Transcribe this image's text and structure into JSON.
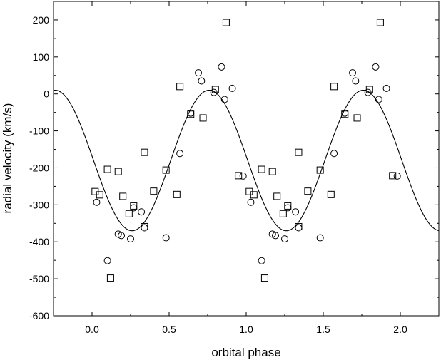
{
  "chart_data": {
    "type": "scatter",
    "title": "",
    "xlabel": "orbital phase",
    "ylabel": "radial velocity (km/s)",
    "xlim": [
      -0.25,
      2.25
    ],
    "ylim": [
      -600,
      250
    ],
    "x_ticks": [
      0.0,
      0.5,
      1.0,
      1.5,
      2.0
    ],
    "x_tick_labels": [
      "0.0",
      "0.5",
      "1.0",
      "1.5",
      "2.0"
    ],
    "y_ticks": [
      -600,
      -500,
      -400,
      -300,
      -200,
      -100,
      0,
      100,
      200
    ],
    "y_tick_labels": [
      "-600",
      "-500",
      "-400",
      "-300",
      "-200",
      "-100",
      "0",
      "100",
      "200"
    ],
    "grid": false,
    "legend": "none",
    "colors": {
      "axis": "#000000",
      "marker": "#000000",
      "background": "#ffffff"
    },
    "series": [
      {
        "marker": "circle",
        "points": [
          [
            0.03,
            -293
          ],
          [
            0.1,
            -451
          ],
          [
            0.17,
            -379
          ],
          [
            0.19,
            -383
          ],
          [
            0.25,
            -392
          ],
          [
            0.27,
            -308
          ],
          [
            0.32,
            -319
          ],
          [
            0.34,
            -362
          ],
          [
            0.48,
            -389
          ],
          [
            0.57,
            -161
          ],
          [
            0.64,
            -52
          ],
          [
            0.69,
            57
          ],
          [
            0.71,
            35
          ],
          [
            0.79,
            4
          ],
          [
            0.84,
            73
          ],
          [
            0.86,
            -15
          ],
          [
            0.91,
            15
          ],
          [
            0.98,
            -222
          ],
          [
            1.03,
            -293
          ],
          [
            1.1,
            -451
          ],
          [
            1.17,
            -379
          ],
          [
            1.19,
            -383
          ],
          [
            1.25,
            -392
          ],
          [
            1.27,
            -308
          ],
          [
            1.32,
            -319
          ],
          [
            1.34,
            -362
          ],
          [
            1.48,
            -389
          ],
          [
            1.57,
            -161
          ],
          [
            1.64,
            -52
          ],
          [
            1.69,
            57
          ],
          [
            1.71,
            35
          ],
          [
            1.79,
            4
          ],
          [
            1.84,
            73
          ],
          [
            1.86,
            -15
          ],
          [
            1.91,
            15
          ],
          [
            1.98,
            -222
          ]
        ]
      },
      {
        "marker": "square",
        "points": [
          [
            0.02,
            -264
          ],
          [
            0.05,
            -273
          ],
          [
            0.1,
            -204
          ],
          [
            0.12,
            -498
          ],
          [
            0.17,
            -210
          ],
          [
            0.2,
            -277
          ],
          [
            0.24,
            -324
          ],
          [
            0.27,
            -303
          ],
          [
            0.34,
            -158
          ],
          [
            0.34,
            -359
          ],
          [
            0.4,
            -263
          ],
          [
            0.48,
            -206
          ],
          [
            0.55,
            -272
          ],
          [
            0.57,
            20
          ],
          [
            0.64,
            -55
          ],
          [
            0.72,
            -65
          ],
          [
            0.8,
            12
          ],
          [
            0.87,
            193
          ],
          [
            0.95,
            -221
          ],
          [
            1.02,
            -264
          ],
          [
            1.05,
            -273
          ],
          [
            1.1,
            -204
          ],
          [
            1.12,
            -498
          ],
          [
            1.17,
            -210
          ],
          [
            1.2,
            -277
          ],
          [
            1.24,
            -324
          ],
          [
            1.27,
            -303
          ],
          [
            1.34,
            -158
          ],
          [
            1.34,
            -359
          ],
          [
            1.4,
            -263
          ],
          [
            1.48,
            -206
          ],
          [
            1.55,
            -272
          ],
          [
            1.57,
            20
          ],
          [
            1.64,
            -55
          ],
          [
            1.72,
            -65
          ],
          [
            1.8,
            12
          ],
          [
            1.87,
            193
          ],
          [
            1.95,
            -221
          ]
        ]
      }
    ],
    "fit_curve": {
      "type": "sinusoid",
      "mean": -180,
      "amplitude": 190,
      "phase_of_maximum": 0.76,
      "period": 1.0
    }
  }
}
